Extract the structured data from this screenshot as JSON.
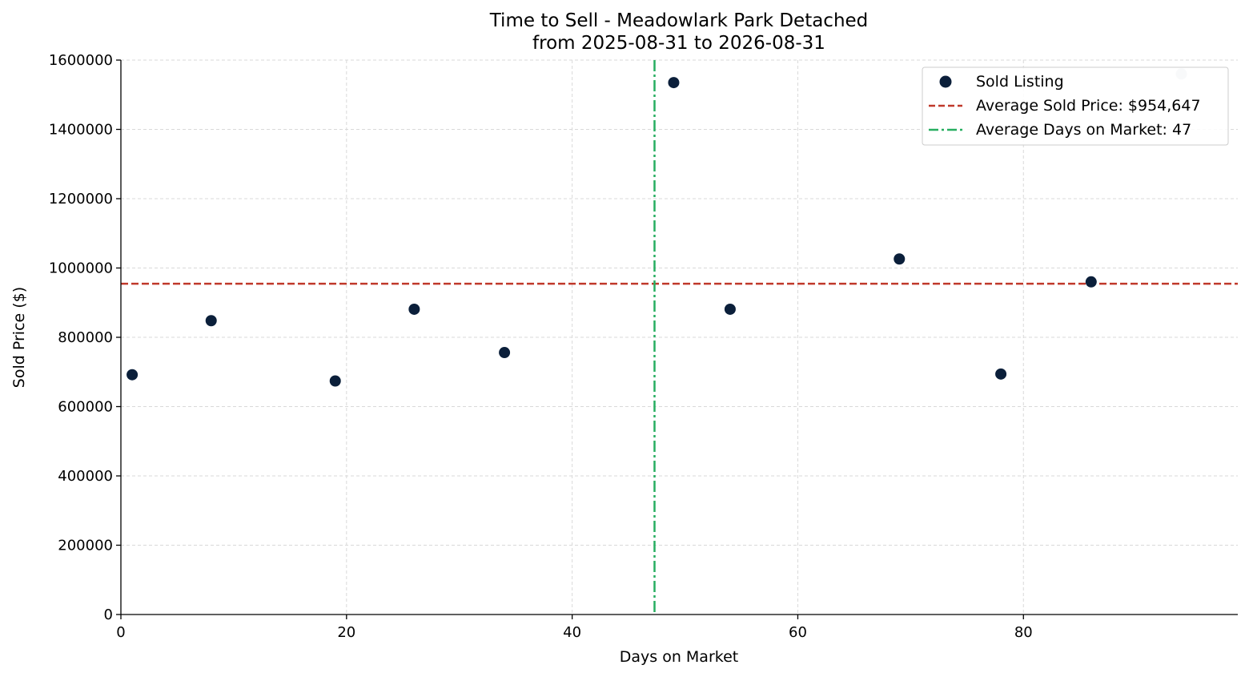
{
  "chart_data": {
    "type": "scatter",
    "title": "Time to Sell - Meadowlark Park Detached",
    "subtitle": "from 2025-08-31 to 2026-08-31",
    "xlabel": "Days on Market",
    "ylabel": "Sold Price ($)",
    "xlim": [
      0,
      99
    ],
    "ylim": [
      0,
      1600000
    ],
    "xticks": [
      0,
      20,
      40,
      60,
      80
    ],
    "yticks": [
      0,
      200000,
      400000,
      600000,
      800000,
      1000000,
      1200000,
      1400000,
      1600000
    ],
    "grid": true,
    "legend_position": "top-right",
    "series": [
      {
        "name": "Sold Listing",
        "color": "#0b1f3a",
        "points": [
          {
            "x": 1,
            "y": 692000
          },
          {
            "x": 8,
            "y": 848000
          },
          {
            "x": 19,
            "y": 674000
          },
          {
            "x": 26,
            "y": 881000
          },
          {
            "x": 34,
            "y": 756000
          },
          {
            "x": 49,
            "y": 1535000
          },
          {
            "x": 54,
            "y": 881000
          },
          {
            "x": 69,
            "y": 1026000
          },
          {
            "x": 78,
            "y": 694000
          },
          {
            "x": 86,
            "y": 960000
          },
          {
            "x": 94,
            "y": 1560000,
            "faded": true
          }
        ]
      }
    ],
    "reference_lines": [
      {
        "name": "Average Sold Price: $954,647",
        "orientation": "horizontal",
        "value": 954647,
        "color": "#c0392b",
        "style": "dashed"
      },
      {
        "name": "Average Days on Market: 47",
        "orientation": "vertical",
        "value": 47.3,
        "color": "#27ae60",
        "style": "dashdot"
      }
    ]
  }
}
